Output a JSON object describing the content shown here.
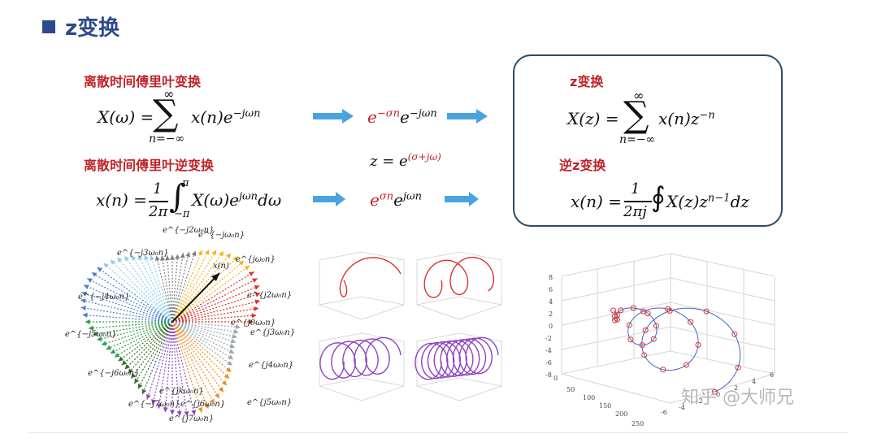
{
  "header": {
    "title": "z变换"
  },
  "left": {
    "dtft_label": "离散时间傅里叶变换",
    "dtft_formula": {
      "lhs": "X(ω) = ",
      "sum_top": "∞",
      "sum_bottom": "n=−∞",
      "term": "x(n)e",
      "exp": "−jωn"
    },
    "idtft_label": "离散时间傅里叶逆变换",
    "idtft_formula": {
      "lhs": "x(n) = ",
      "frac_num": "1",
      "frac_den": "2π",
      "int_top": "π",
      "int_bottom": "−π",
      "term": "X(ω)e",
      "exp": "jωn",
      "tail": "dω"
    }
  },
  "middle": {
    "term1": {
      "base1": "e",
      "exp1": "−σn",
      "base2": "e",
      "exp2": "−jωn"
    },
    "z_def": {
      "text": "z = e",
      "exp": "(σ+jω)"
    },
    "term2": {
      "base1": "e",
      "exp1": "σn",
      "base2": "e",
      "exp2": "jωn"
    }
  },
  "box": {
    "z_label": "z变换",
    "z_formula": {
      "lhs": "X(z) = ",
      "sum_top": "∞",
      "sum_bottom": "n=−∞",
      "term": "x(n)z",
      "exp": "−n"
    },
    "iz_label": "逆z变换",
    "iz_formula": {
      "lhs": "x(n) = ",
      "frac_num": "1",
      "frac_den": "2πj",
      "term": "X(z)z",
      "exp": "n−1",
      "tail": "dz"
    }
  },
  "fan_labels": [
    "e^{−j2ω₀n}",
    "e^{−jω₀n}",
    "x(n)",
    "e^{jω₀n}",
    "e^{−j3ω₀n}",
    "e^{j2ω₀n}",
    "e^{−j4ω₀n}",
    "e^{j0ω₀n}",
    "e^{−j5ω₀n}",
    "e^{j3ω₀n}",
    "e^{j4ω₀n}",
    "e^{−j6ω₀n}",
    "e^{jkω₀n}",
    "e^{−j7ω₀n}",
    "e^{j6ω₀n}",
    "e^{j5ω₀n}",
    "e^{j7ω₀n}"
  ],
  "plot3d": {
    "z_ticks": [
      "8",
      "6",
      "4",
      "2",
      "0",
      "-2",
      "-4",
      "-6",
      "-8"
    ],
    "x_ticks": [
      "0",
      "50",
      "100",
      "150",
      "200",
      "250"
    ],
    "y_ticks": [
      "-6",
      "-4",
      "-2",
      "0",
      "2",
      "4",
      "6"
    ]
  },
  "watermark": "知乎 @大师兄",
  "colors": {
    "accent": "#2d4a8a",
    "red_label": "#c0242a",
    "arrow": "#4aa3df",
    "box_border": "#2d4a6a"
  }
}
